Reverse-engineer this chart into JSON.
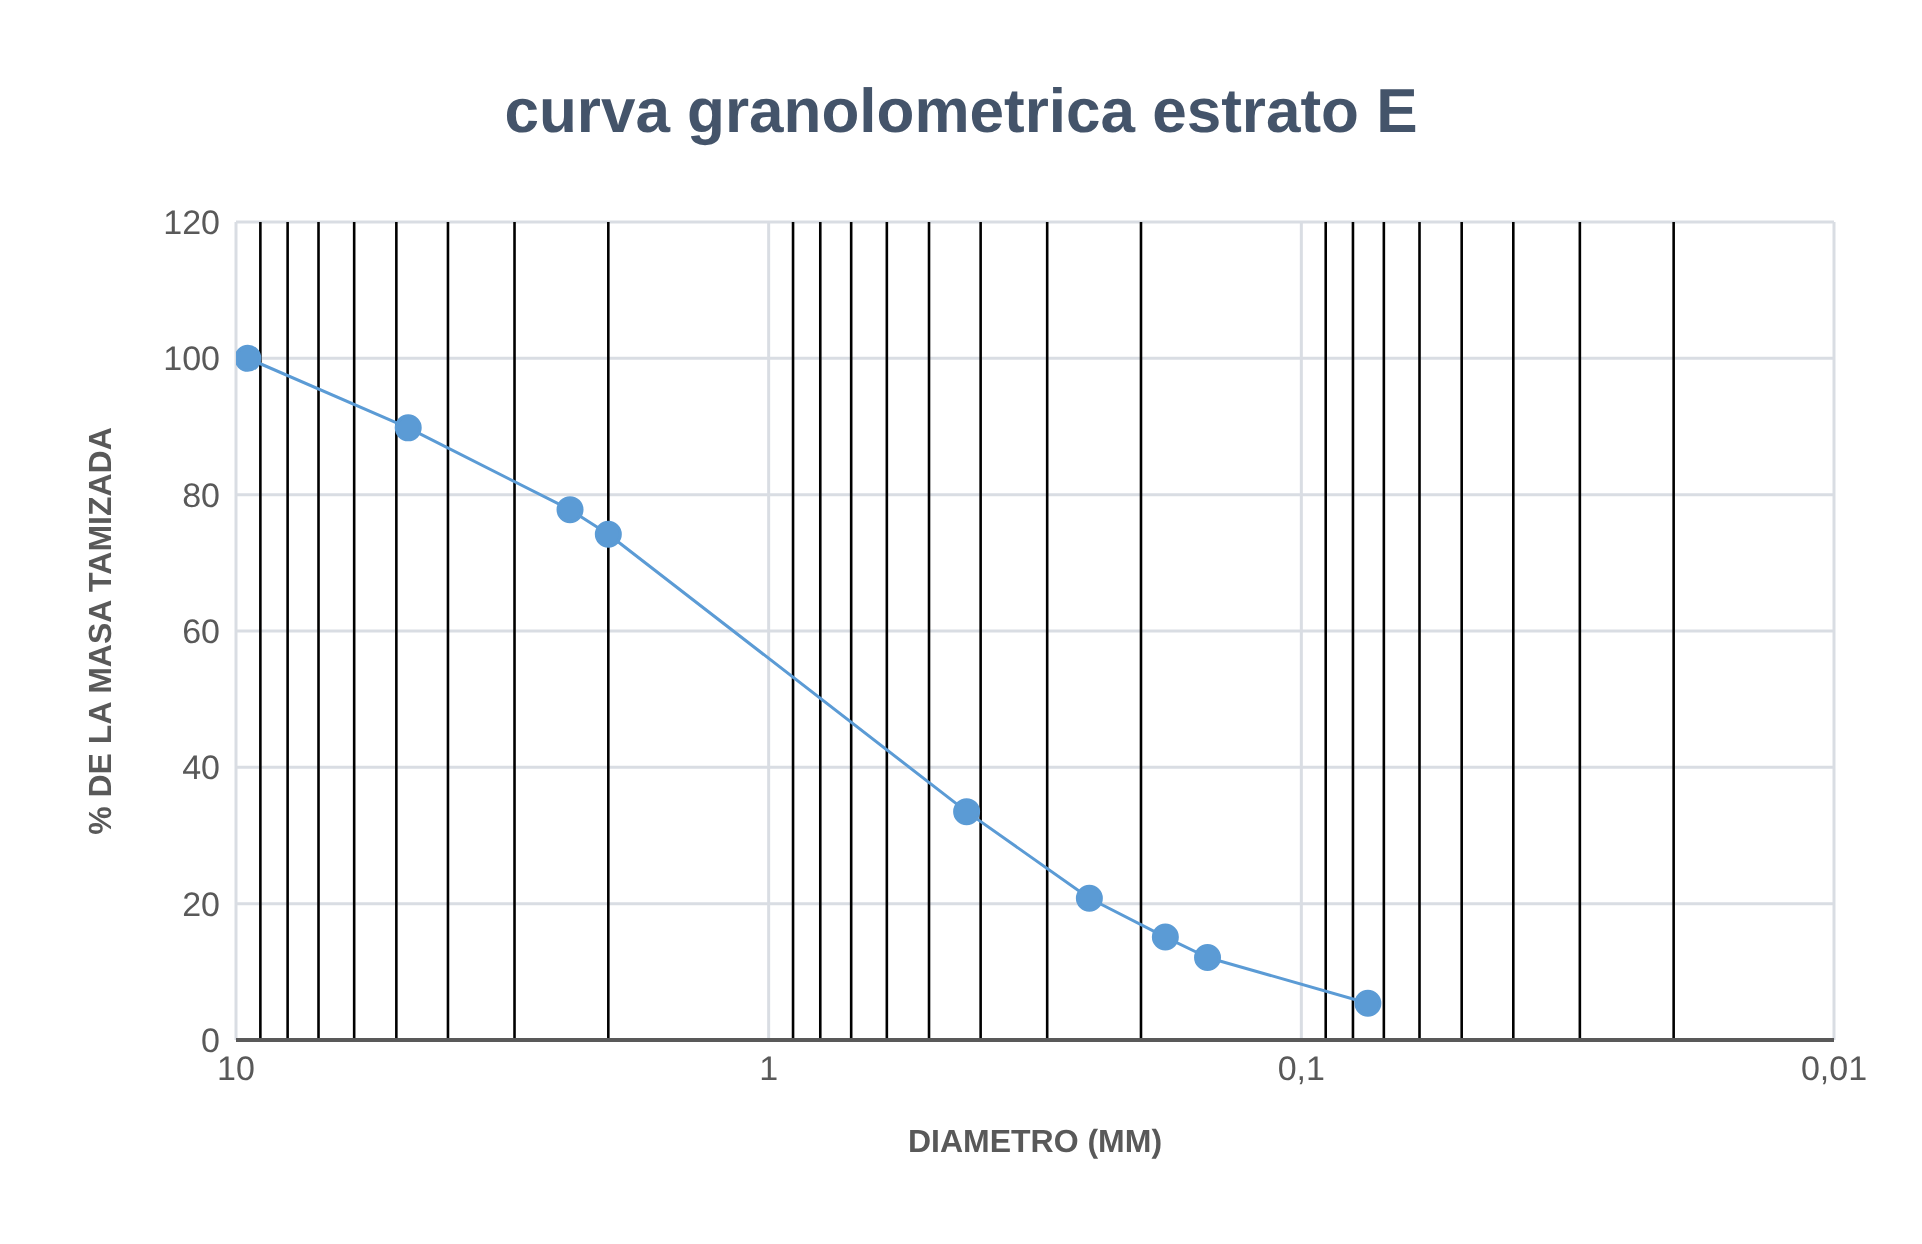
{
  "chart_data": {
    "type": "line",
    "title": "curva granolometrica estrato E",
    "xlabel": "DIAMETRO (MM)",
    "ylabel": "% DE LA MASA TAMIZADA",
    "x": [
      9.5,
      4.75,
      2.36,
      2.0,
      0.425,
      0.25,
      0.18,
      0.15,
      0.075
    ],
    "series": [
      {
        "color": "#5b9bd5",
        "values": [
          100,
          89.8,
          77.8,
          74.2,
          33.5,
          20.8,
          15.1,
          12.1,
          5.4
        ]
      }
    ],
    "log": "x",
    "xlim": [
      10,
      0.01
    ],
    "xticks": [
      10,
      1,
      {
        "value": 0.1,
        "label": "0,1"
      },
      {
        "value": 0.01,
        "label": "0,01"
      }
    ],
    "ylim": [
      0,
      120
    ],
    "yticks": [
      0,
      20,
      40,
      60,
      80,
      100,
      120
    ],
    "grid": true,
    "marker": "circle",
    "line_style": "solid",
    "ref_lines": [
      {
        "axis": "x",
        "value": 9,
        "label": null,
        "color": "#000000"
      },
      {
        "axis": "x",
        "value": 8,
        "label": null,
        "color": "#000000"
      },
      {
        "axis": "x",
        "value": 7,
        "label": null,
        "color": "#000000"
      },
      {
        "axis": "x",
        "value": 6,
        "label": null,
        "color": "#000000"
      },
      {
        "axis": "x",
        "value": 5,
        "label": null,
        "color": "#000000"
      },
      {
        "axis": "x",
        "value": 4,
        "label": null,
        "color": "#000000"
      },
      {
        "axis": "x",
        "value": 3,
        "label": null,
        "color": "#000000"
      },
      {
        "axis": "x",
        "value": 2,
        "label": null,
        "color": "#000000"
      },
      {
        "axis": "x",
        "value": 0.9,
        "label": null,
        "color": "#000000"
      },
      {
        "axis": "x",
        "value": 0.8,
        "label": null,
        "color": "#000000"
      },
      {
        "axis": "x",
        "value": 0.7,
        "label": null,
        "color": "#000000"
      },
      {
        "axis": "x",
        "value": 0.6,
        "label": null,
        "color": "#000000"
      },
      {
        "axis": "x",
        "value": 0.5,
        "label": null,
        "color": "#000000"
      },
      {
        "axis": "x",
        "value": 0.4,
        "label": null,
        "color": "#000000"
      },
      {
        "axis": "x",
        "value": 0.3,
        "label": null,
        "color": "#000000"
      },
      {
        "axis": "x",
        "value": 0.2,
        "label": null,
        "color": "#000000"
      },
      {
        "axis": "x",
        "value": 0.09,
        "label": null,
        "color": "#000000"
      },
      {
        "axis": "x",
        "value": 0.08,
        "label": null,
        "color": "#000000"
      },
      {
        "axis": "x",
        "value": 0.07,
        "label": null,
        "color": "#000000"
      },
      {
        "axis": "x",
        "value": 0.06,
        "label": null,
        "color": "#000000"
      },
      {
        "axis": "x",
        "value": 0.05,
        "label": null,
        "color": "#000000"
      },
      {
        "axis": "x",
        "value": 0.04,
        "label": null,
        "color": "#000000"
      },
      {
        "axis": "x",
        "value": 0.03,
        "label": null,
        "color": "#000000"
      },
      {
        "axis": "x",
        "value": 0.02,
        "label": null,
        "color": "#000000"
      }
    ]
  }
}
